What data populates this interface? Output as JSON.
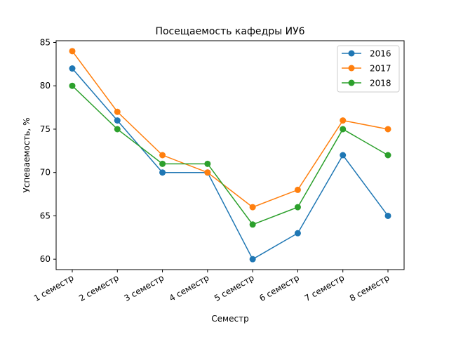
{
  "chart_data": {
    "type": "line",
    "title": "Посещаемость кафедры ИУ6",
    "xlabel": "Семестр",
    "ylabel": "Успеваемость, %",
    "categories": [
      "1 семестр",
      "2 семестр",
      "3 семестр",
      "4 семестр",
      "5 семестр",
      "6 семестр",
      "7 семестр",
      "8 семестр"
    ],
    "ylim": [
      58.8,
      85.2
    ],
    "yticks": [
      60,
      65,
      70,
      75,
      80,
      85
    ],
    "grid": false,
    "legend_position": "top-right",
    "series": [
      {
        "name": "2016",
        "color": "#1f77b4",
        "values": [
          82,
          76,
          70,
          70,
          60,
          63,
          72,
          65
        ]
      },
      {
        "name": "2017",
        "color": "#ff7f0e",
        "values": [
          84,
          77,
          72,
          70,
          66,
          68,
          76,
          75
        ]
      },
      {
        "name": "2018",
        "color": "#2ca02c",
        "values": [
          80,
          75,
          71,
          71,
          64,
          66,
          75,
          72
        ]
      }
    ]
  }
}
